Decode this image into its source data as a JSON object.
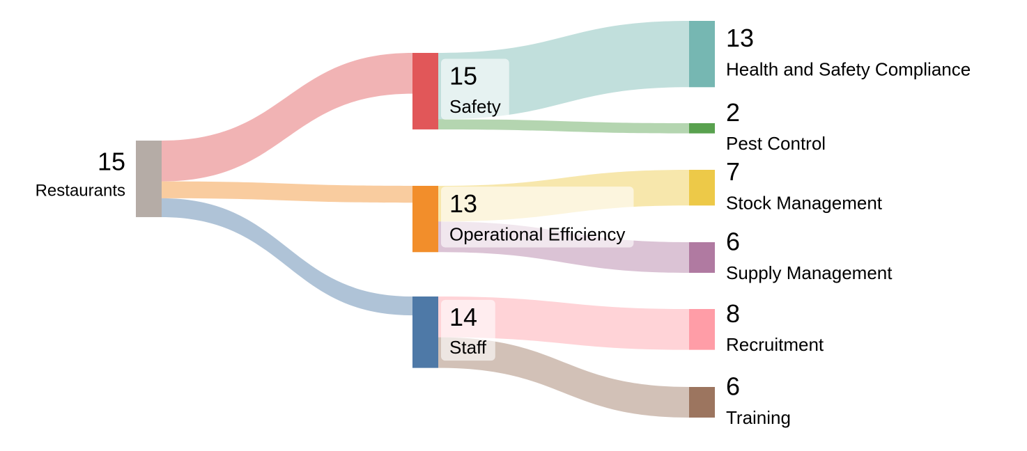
{
  "chart_data": {
    "type": "sankey",
    "nodes": [
      {
        "name": "Restaurants",
        "value": 15,
        "color": "#b5aca6"
      },
      {
        "name": "Safety",
        "value": 15,
        "color": "#e15759"
      },
      {
        "name": "Operational Efficiency",
        "value": 13,
        "color": "#f28e2b"
      },
      {
        "name": "Staff",
        "value": 14,
        "color": "#4e79a7"
      },
      {
        "name": "Health and Safety Compliance",
        "value": 13,
        "color": "#76b7b2"
      },
      {
        "name": "Pest Control",
        "value": 2,
        "color": "#59a14f"
      },
      {
        "name": "Stock Management",
        "value": 7,
        "color": "#edc948"
      },
      {
        "name": "Supply Management",
        "value": 6,
        "color": "#b07aa1"
      },
      {
        "name": "Recruitment",
        "value": 8,
        "color": "#ff9da7"
      },
      {
        "name": "Training",
        "value": 6,
        "color": "#9c755f"
      }
    ],
    "links": [
      {
        "source": 0,
        "target": 1,
        "value": 8
      },
      {
        "source": 0,
        "target": 2,
        "value": 3.3
      },
      {
        "source": 0,
        "target": 3,
        "value": 3.7
      },
      {
        "source": 1,
        "target": 4,
        "value": 13
      },
      {
        "source": 1,
        "target": 5,
        "value": 2
      },
      {
        "source": 2,
        "target": 6,
        "value": 7
      },
      {
        "source": 2,
        "target": 7,
        "value": 6
      },
      {
        "source": 3,
        "target": 8,
        "value": 8
      },
      {
        "source": 3,
        "target": 9,
        "value": 6
      }
    ]
  }
}
